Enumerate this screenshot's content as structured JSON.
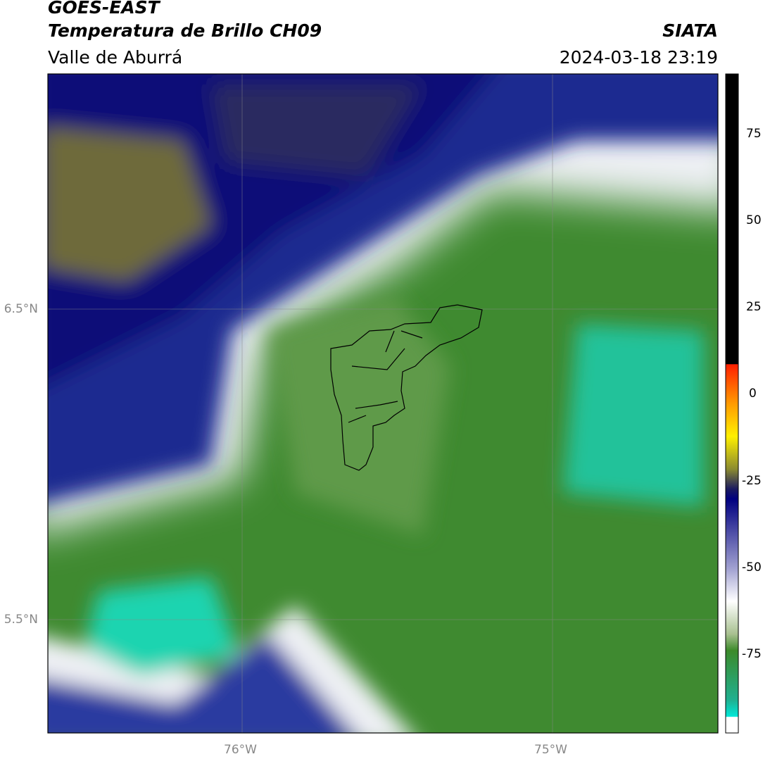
{
  "header": {
    "title": "GOES-EAST",
    "subtitle": "Temperatura de Brillo CH09",
    "region": "Valle de Aburrá",
    "source": "SIATA",
    "datetime": "2024-03-18 23:19"
  },
  "map": {
    "lat_labels": [
      "6.5°N",
      "5.5°N"
    ],
    "lon_labels": [
      "76°W",
      "75°W"
    ]
  },
  "colorbar": {
    "tick_labels": [
      "75",
      "50",
      "25",
      "0",
      "-25",
      "-50",
      "-75"
    ]
  }
}
